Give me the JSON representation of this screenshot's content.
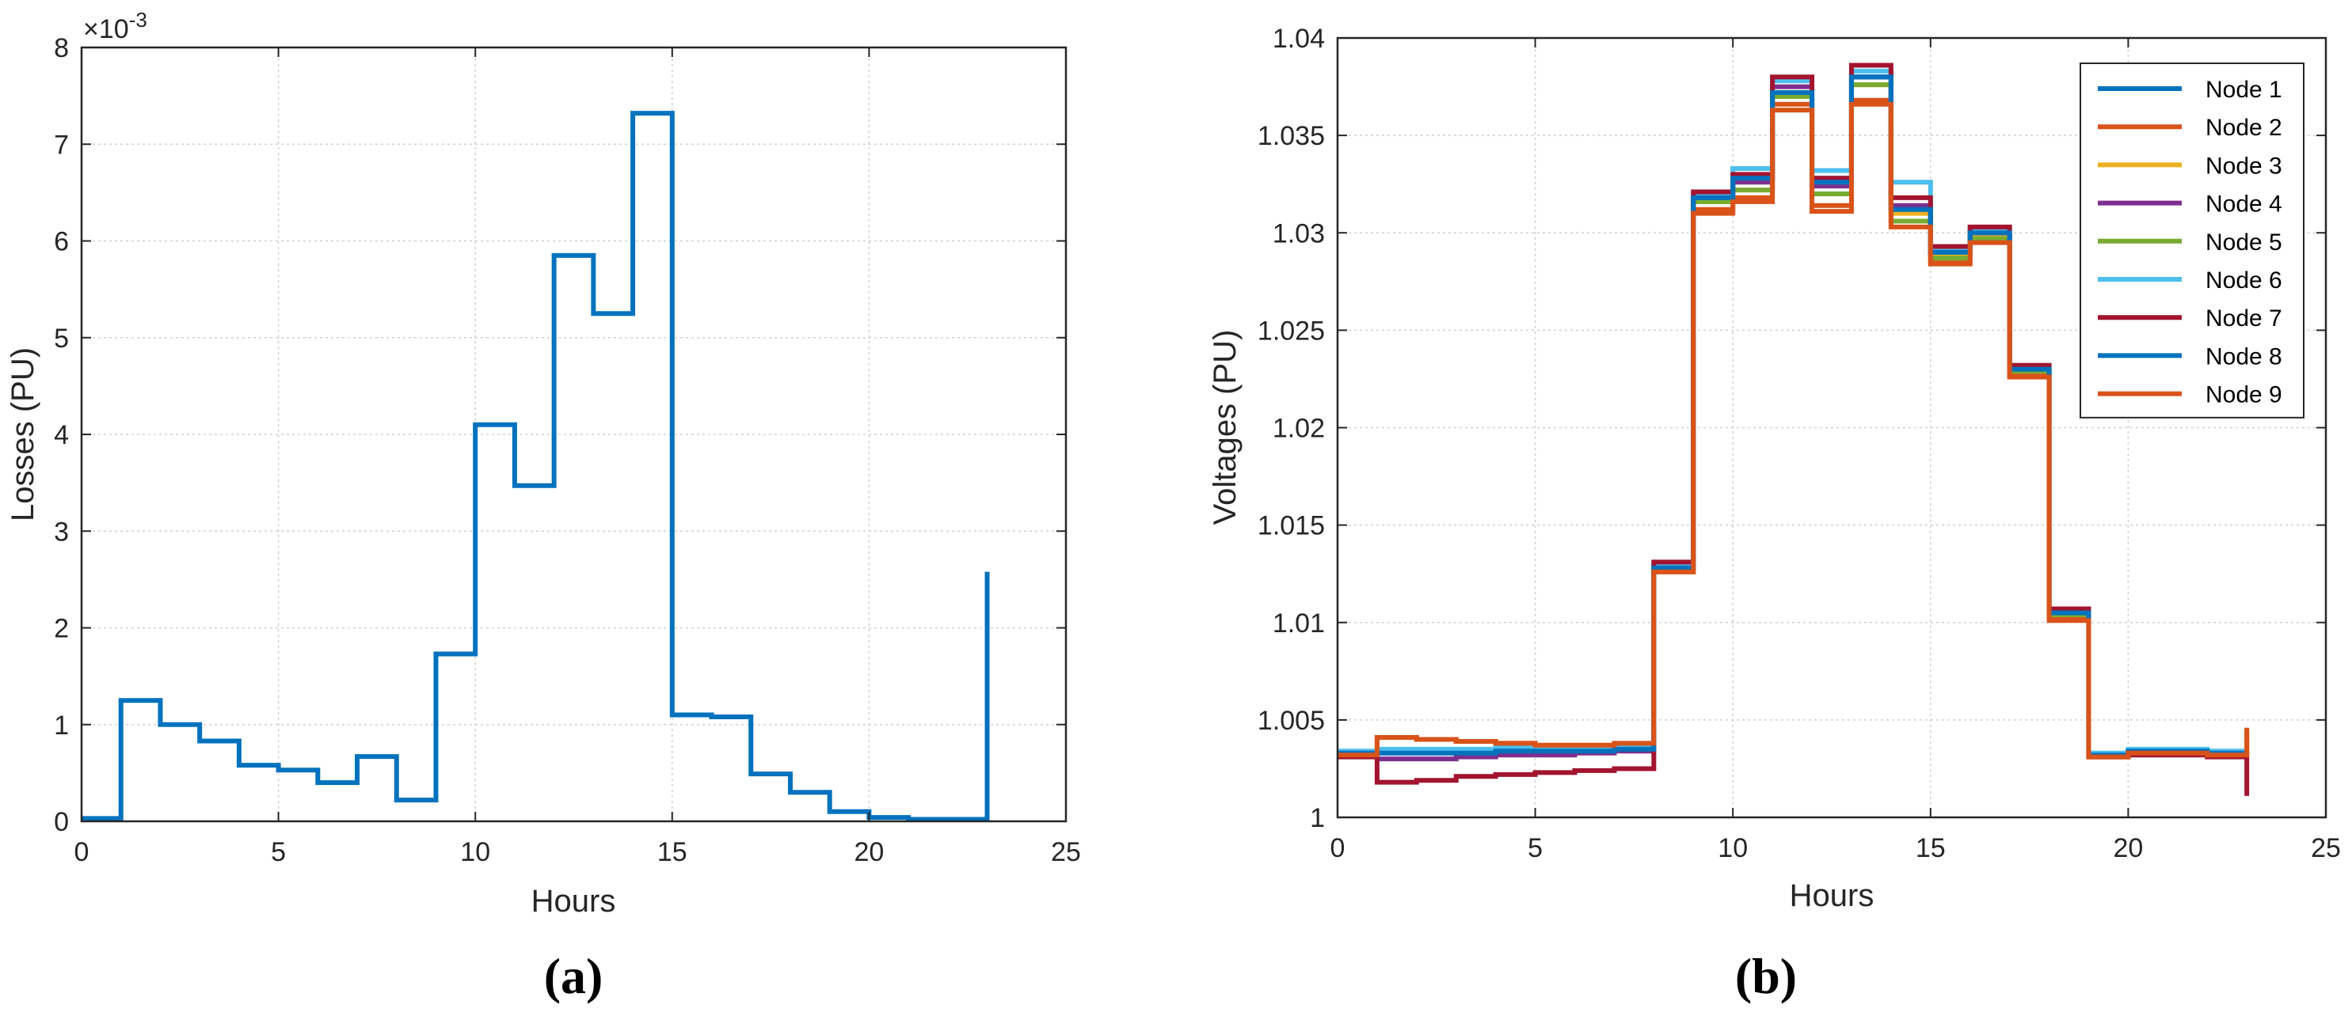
{
  "chart_data": [
    {
      "type": "line",
      "step": true,
      "panel_label": "(a)",
      "title": "",
      "xlabel": "Hours",
      "ylabel": "Losses (PU)",
      "exponent_label": "×10",
      "exponent_power": "-3",
      "xlim": [
        0,
        25
      ],
      "ylim": [
        0,
        8
      ],
      "xticks": [
        "0",
        "5",
        "10",
        "15",
        "20",
        "25"
      ],
      "yticks": [
        "0",
        "1",
        "2",
        "3",
        "4",
        "5",
        "6",
        "7",
        "8"
      ],
      "grid": true,
      "series": [
        {
          "color": "#0072BD",
          "x": [
            0,
            1,
            2,
            3,
            4,
            5,
            6,
            7,
            8,
            9,
            10,
            11,
            12,
            13,
            14,
            15,
            16,
            17,
            18,
            19,
            20,
            21,
            22,
            23
          ],
          "y": [
            0.03,
            1.25,
            1.0,
            0.83,
            0.58,
            0.53,
            0.4,
            0.67,
            0.22,
            1.73,
            4.1,
            3.47,
            5.85,
            5.25,
            7.32,
            1.1,
            1.08,
            0.49,
            0.3,
            0.1,
            0.04,
            0.02,
            0.02,
            2.58
          ]
        }
      ]
    },
    {
      "type": "line",
      "step": true,
      "panel_label": "(b)",
      "title": "",
      "xlabel": "Hours",
      "ylabel": "Voltages (PU)",
      "xlim": [
        0,
        25
      ],
      "ylim": [
        1,
        1.04
      ],
      "xticks": [
        "0",
        "5",
        "10",
        "15",
        "20",
        "25"
      ],
      "yticks": [
        "1",
        "1.005",
        "1.01",
        "1.015",
        "1.02",
        "1.025",
        "1.03",
        "1.035",
        "1.04"
      ],
      "grid": true,
      "legend_position": "top-right",
      "x": [
        0,
        1,
        2,
        3,
        4,
        5,
        6,
        7,
        8,
        9,
        10,
        11,
        12,
        13,
        14,
        15,
        16,
        17,
        18,
        19,
        20,
        21,
        22,
        23
      ],
      "series": [
        {
          "name": "Node 1",
          "color": "#0072BD",
          "values": [
            1.0033,
            1.0033,
            1.0033,
            1.0033,
            1.0034,
            1.0034,
            1.0034,
            1.0035,
            1.0128,
            1.0318,
            1.0328,
            1.0372,
            1.0328,
            1.038,
            1.0312,
            1.029,
            1.03,
            1.023,
            1.0105,
            1.0032,
            1.0034,
            1.0034,
            1.0033,
            1.0033
          ]
        },
        {
          "name": "Node 2",
          "color": "#D95319",
          "values": [
            1.0032,
            1.0041,
            1.004,
            1.0039,
            1.0038,
            1.0037,
            1.0037,
            1.0037,
            1.0126,
            1.0312,
            1.0318,
            1.0366,
            1.0314,
            1.0368,
            1.0306,
            1.0285,
            1.0296,
            1.0227,
            1.0102,
            1.0031,
            1.0033,
            1.0033,
            1.0032,
            1.0046
          ]
        },
        {
          "name": "Node 3",
          "color": "#EDB120",
          "values": [
            1.0033,
            1.0034,
            1.0034,
            1.0034,
            1.0035,
            1.0035,
            1.0035,
            1.0036,
            1.0128,
            1.0316,
            1.0322,
            1.037,
            1.032,
            1.0376,
            1.031,
            1.0288,
            1.0298,
            1.0229,
            1.0104,
            1.0032,
            1.0034,
            1.0034,
            1.0033,
            1.0033
          ]
        },
        {
          "name": "Node 4",
          "color": "#7E2F8E",
          "values": [
            1.0032,
            1.003,
            1.003,
            1.0031,
            1.0032,
            1.0032,
            1.0033,
            1.0034,
            1.0129,
            1.0318,
            1.0326,
            1.0375,
            1.0324,
            1.038,
            1.0314,
            1.0291,
            1.03,
            1.023,
            1.0105,
            1.0032,
            1.0034,
            1.0034,
            1.0033,
            1.0032
          ]
        },
        {
          "name": "Node 5",
          "color": "#77AC30",
          "values": [
            1.0033,
            1.0034,
            1.0034,
            1.0034,
            1.0035,
            1.0035,
            1.0035,
            1.0036,
            1.0128,
            1.0316,
            1.0322,
            1.037,
            1.032,
            1.0376,
            1.0306,
            1.0287,
            1.0297,
            1.0229,
            1.0104,
            1.0032,
            1.0034,
            1.0034,
            1.0033,
            1.0033
          ]
        },
        {
          "name": "Node 6",
          "color": "#4DBEEE",
          "values": [
            1.0034,
            1.0035,
            1.0035,
            1.0035,
            1.0036,
            1.0036,
            1.0036,
            1.0037,
            1.013,
            1.032,
            1.0333,
            1.0378,
            1.0332,
            1.0383,
            1.0326,
            1.0292,
            1.0302,
            1.0232,
            1.0106,
            1.0033,
            1.0035,
            1.0035,
            1.0034,
            1.0034
          ]
        },
        {
          "name": "Node 7",
          "color": "#A2142F",
          "values": [
            1.0031,
            1.0018,
            1.0019,
            1.0021,
            1.0022,
            1.0023,
            1.0024,
            1.0025,
            1.0131,
            1.0321,
            1.033,
            1.038,
            1.0328,
            1.0386,
            1.0318,
            1.0293,
            1.0303,
            1.0232,
            1.0107,
            1.0031,
            1.0032,
            1.0032,
            1.0031,
            1.0011
          ]
        },
        {
          "name": "Node 8",
          "color": "#0072BD",
          "values": [
            1.0033,
            1.0033,
            1.0033,
            1.0033,
            1.0034,
            1.0034,
            1.0034,
            1.0035,
            1.0128,
            1.0318,
            1.0328,
            1.0372,
            1.0326,
            1.038,
            1.0312,
            1.029,
            1.03,
            1.023,
            1.0105,
            1.0032,
            1.0034,
            1.0034,
            1.0033,
            1.0033
          ]
        },
        {
          "name": "Node 9",
          "color": "#D95319",
          "values": [
            1.0032,
            1.0041,
            1.004,
            1.0039,
            1.0038,
            1.0037,
            1.0037,
            1.0038,
            1.0126,
            1.031,
            1.0316,
            1.0363,
            1.0311,
            1.0366,
            1.0303,
            1.0284,
            1.0295,
            1.0226,
            1.0101,
            1.0031,
            1.0033,
            1.0033,
            1.0032,
            1.0044
          ]
        }
      ]
    }
  ]
}
